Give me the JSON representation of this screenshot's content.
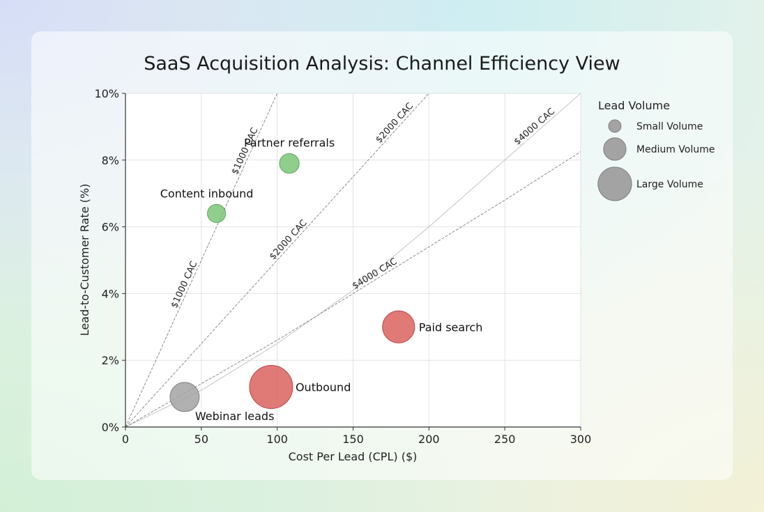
{
  "chart_data": {
    "type": "scatter",
    "title": "SaaS Acquisition Analysis: Channel Efficiency View",
    "xlabel": "Cost Per Lead (CPL) ($)",
    "ylabel": "Lead-to-Customer Rate (%)",
    "xlim": [
      0,
      300
    ],
    "ylim": [
      0,
      10
    ],
    "xticks": [
      "0",
      "50",
      "100",
      "150",
      "200",
      "250",
      "300"
    ],
    "yticks": [
      "0%",
      "2%",
      "4%",
      "6%",
      "8%",
      "10%"
    ],
    "grid": true,
    "points": [
      {
        "label": "Partner referrals",
        "cpl": 108,
        "rate": 7.9,
        "volume": 200,
        "color": "#7cc57a"
      },
      {
        "label": "Content inbound",
        "cpl": 60,
        "rate": 6.4,
        "volume": 170,
        "color": "#7cc57a"
      },
      {
        "label": "Paid search",
        "cpl": 180,
        "rate": 3.0,
        "volume": 530,
        "color": "#d9635f"
      },
      {
        "label": "Outbound",
        "cpl": 96,
        "rate": 1.2,
        "volume": 960,
        "color": "#d9635f"
      },
      {
        "label": "Webinar leads",
        "cpl": 39,
        "rate": 0.9,
        "volume": 440,
        "color": "#a3a3a3"
      }
    ],
    "reference_lines": [
      {
        "label": "$1000 CAC",
        "style": "dashed",
        "points": [
          [
            0,
            0
          ],
          [
            100,
            10
          ]
        ]
      },
      {
        "label": "$2000 CAC",
        "style": "dashed",
        "points": [
          [
            0,
            0
          ],
          [
            200,
            10
          ]
        ]
      },
      {
        "label": "$4000 CAC",
        "style": "light",
        "points": [
          [
            0,
            0
          ],
          [
            50,
            1.1
          ],
          [
            100,
            2.5
          ],
          [
            150,
            4.1
          ],
          [
            200,
            6.0
          ],
          [
            250,
            8.0
          ],
          [
            300,
            10
          ]
        ]
      },
      {
        "label": "$4000 CAC",
        "style": "dashed",
        "points": [
          [
            0,
            0
          ],
          [
            100,
            2.6
          ],
          [
            150,
            4.0
          ],
          [
            200,
            5.4
          ],
          [
            250,
            6.8
          ],
          [
            300,
            8.25
          ]
        ]
      }
    ],
    "legend": {
      "title": "Lead Volume",
      "position": "right",
      "items": [
        {
          "label": "Small Volume",
          "volume": 80
        },
        {
          "label": "Medium Volume",
          "volume": 260
        },
        {
          "label": "Large Volume",
          "volume": 580
        }
      ]
    }
  }
}
